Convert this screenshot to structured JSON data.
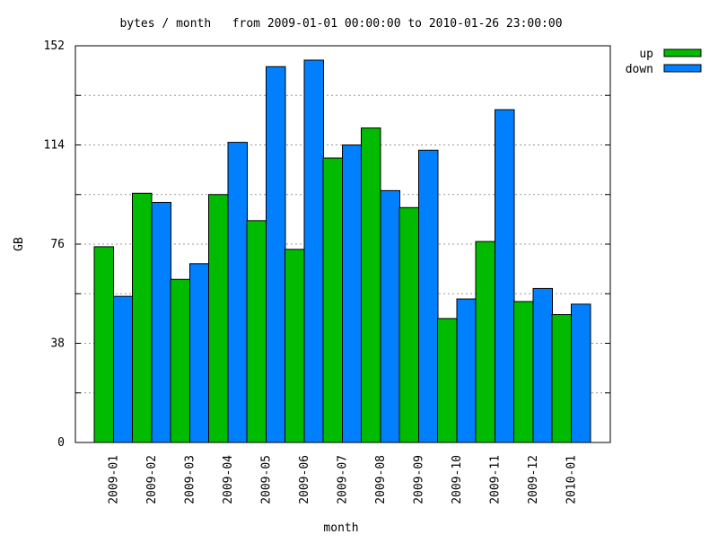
{
  "chart_data": {
    "type": "bar",
    "title": "bytes / month   from 2009-01-01 00:00:00 to 2010-01-26 23:00:00",
    "xlabel": "month",
    "ylabel": "GB",
    "ylim": [
      0,
      152
    ],
    "yticks": [
      "0",
      "38",
      "76",
      "114",
      "152"
    ],
    "grid": true,
    "legend_position": "top-right",
    "categories": [
      "2009-01",
      "2009-02",
      "2009-03",
      "2009-04",
      "2009-05",
      "2009-06",
      "2009-07",
      "2009-08",
      "2009-09",
      "2009-10",
      "2009-11",
      "2009-12",
      "2010-01"
    ],
    "series": [
      {
        "name": "up",
        "color": "#00bb00",
        "values": [
          75,
          95.5,
          62.5,
          95,
          85,
          74,
          109,
          120.5,
          90,
          47.5,
          77,
          54,
          49
        ]
      },
      {
        "name": "down",
        "color": "#0080ff",
        "values": [
          56,
          92,
          68.5,
          115,
          144,
          146.5,
          114,
          96.5,
          112,
          55,
          127.5,
          59,
          53
        ]
      }
    ]
  }
}
